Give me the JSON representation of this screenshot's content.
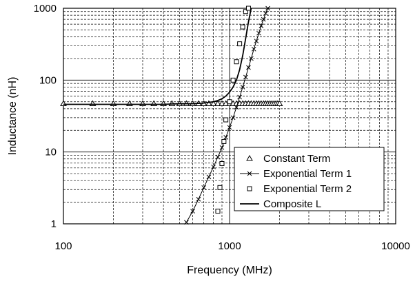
{
  "chart_data": {
    "type": "scatter",
    "title": "",
    "xlabel": "Frequency  (MHz)",
    "ylabel": "Inductance  (nH)",
    "x_scale": "log",
    "y_scale": "log",
    "xlim": [
      100,
      10000
    ],
    "ylim": [
      1,
      1000
    ],
    "x_ticks": [
      100,
      1000,
      10000
    ],
    "x_tick_labels": [
      "100",
      "1000",
      "10000"
    ],
    "y_ticks": [
      1,
      10,
      100,
      1000
    ],
    "y_tick_labels": [
      "1",
      "10",
      "100",
      "1000"
    ],
    "grid": true,
    "legend_position": "bottom-right",
    "series": [
      {
        "name": "Constant Term",
        "marker": "triangle",
        "style": "markers",
        "color": "#000000",
        "x": [
          100,
          150,
          200,
          250,
          300,
          350,
          400,
          450,
          500,
          550,
          600,
          650,
          700,
          750,
          800,
          850,
          900,
          950,
          1000,
          1050,
          1100,
          1150,
          1200,
          1250,
          1300,
          1350,
          1400,
          1450,
          1500,
          1550,
          1600,
          1650,
          1700,
          1750,
          1800,
          1850,
          1900,
          1950,
          2000
        ],
        "y": [
          47,
          47,
          47,
          47,
          47,
          47,
          47,
          47,
          47,
          47,
          47,
          47,
          47,
          47,
          47,
          47,
          47,
          47,
          47,
          47,
          47,
          47,
          47,
          47,
          47,
          47,
          47,
          47,
          47,
          47,
          47,
          47,
          47,
          47,
          47,
          47,
          47,
          47,
          47
        ]
      },
      {
        "name": "Exponential Term 1",
        "marker": "cross",
        "style": "line+markers",
        "color": "#000000",
        "x": [
          550,
          600,
          650,
          700,
          750,
          800,
          850,
          900,
          950,
          1000,
          1050,
          1100,
          1150,
          1200,
          1250,
          1300,
          1350,
          1400,
          1450,
          1500,
          1550,
          1600,
          1650,
          1700
        ],
        "y": [
          1.05,
          1.5,
          2.2,
          3.2,
          4.5,
          6.2,
          8.5,
          11.5,
          16,
          22,
          30,
          42,
          58,
          80,
          110,
          150,
          200,
          270,
          350,
          450,
          570,
          700,
          850,
          1000
        ]
      },
      {
        "name": "Exponential Term 2",
        "marker": "square",
        "style": "markers",
        "color": "#000000",
        "x": [
          850,
          875,
          900,
          925,
          950,
          1000,
          1050,
          1100,
          1150,
          1200,
          1250,
          1300
        ],
        "y": [
          1.5,
          3.2,
          6.9,
          14,
          28,
          50,
          100,
          180,
          320,
          550,
          900,
          1000
        ]
      },
      {
        "name": "Composite L",
        "marker": "none",
        "style": "line",
        "color": "#000000",
        "x": [
          100,
          200,
          300,
          400,
          500,
          600,
          700,
          800,
          850,
          900,
          950,
          1000,
          1050,
          1100,
          1150,
          1200,
          1250,
          1300,
          1350
        ],
        "y": [
          46,
          46,
          46,
          46,
          47,
          47,
          48,
          50,
          52,
          55,
          60,
          68,
          80,
          100,
          140,
          220,
          380,
          650,
          1000
        ]
      }
    ]
  }
}
